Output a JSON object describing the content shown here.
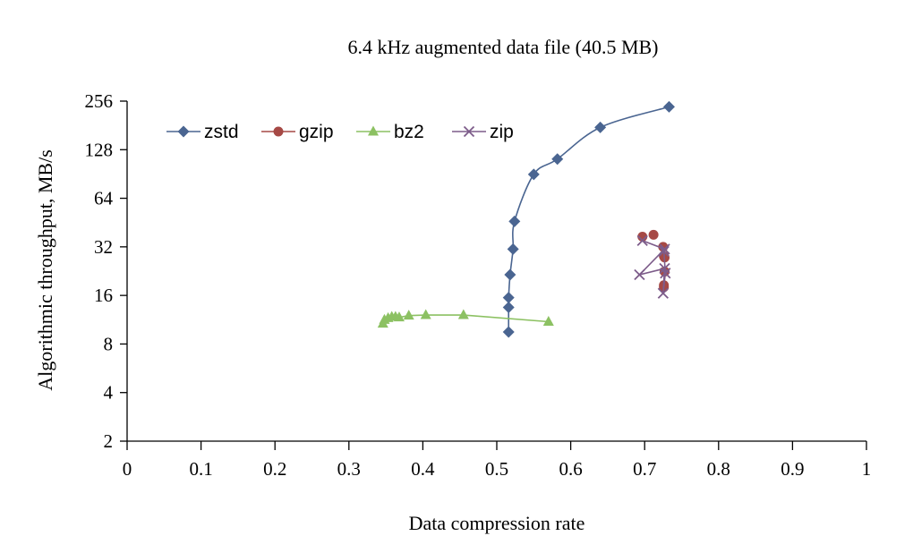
{
  "chart_data": {
    "type": "line",
    "title": "6.4 kHz augmented data file (40.5 MB)",
    "xlabel": "Data compression rate",
    "ylabel": "Algorithmic throughput, MB/s",
    "xlim": [
      0,
      1
    ],
    "ylim": [
      2,
      256
    ],
    "yscale": "log2",
    "x_ticks": [
      "0",
      "0.1",
      "0.2",
      "0.3",
      "0.4",
      "0.5",
      "0.6",
      "0.7",
      "0.8",
      "0.9",
      "1"
    ],
    "y_ticks": [
      "2",
      "4",
      "8",
      "16",
      "32",
      "64",
      "128",
      "256"
    ],
    "grid": false,
    "legend_position": "top-left",
    "series": [
      {
        "name": "zstd",
        "color": "#4a6591",
        "marker": "diamond",
        "x": [
          0.516,
          0.516,
          0.516,
          0.518,
          0.522,
          0.524,
          0.55,
          0.582,
          0.64,
          0.733
        ],
        "y": [
          9.5,
          13.5,
          15.5,
          21.5,
          31,
          46,
          90,
          112,
          176,
          236
        ]
      },
      {
        "name": "gzip",
        "color": "#a64945",
        "marker": "circle",
        "x": [
          0.697,
          0.712,
          0.725,
          0.726,
          0.727,
          0.727,
          0.726,
          0.726
        ],
        "y": [
          37,
          38,
          32,
          28,
          27.5,
          22.5,
          18.5,
          18
        ],
        "connected": false
      },
      {
        "name": "bz2",
        "color": "#8cc162",
        "marker": "triangle",
        "x": [
          0.346,
          0.348,
          0.353,
          0.358,
          0.363,
          0.368,
          0.381,
          0.404,
          0.455,
          0.57
        ],
        "y": [
          10.7,
          11.3,
          11.6,
          11.8,
          11.8,
          11.7,
          12,
          12.1,
          12.1,
          11
        ],
        "connected": true
      },
      {
        "name": "zip",
        "color": "#7d5c8a",
        "marker": "x",
        "x": [
          0.697,
          0.727,
          0.693,
          0.727,
          0.725,
          0.728,
          0.726
        ],
        "y": [
          35,
          31,
          21.5,
          23.5,
          16.5,
          22,
          30
        ],
        "connected": true
      }
    ]
  }
}
